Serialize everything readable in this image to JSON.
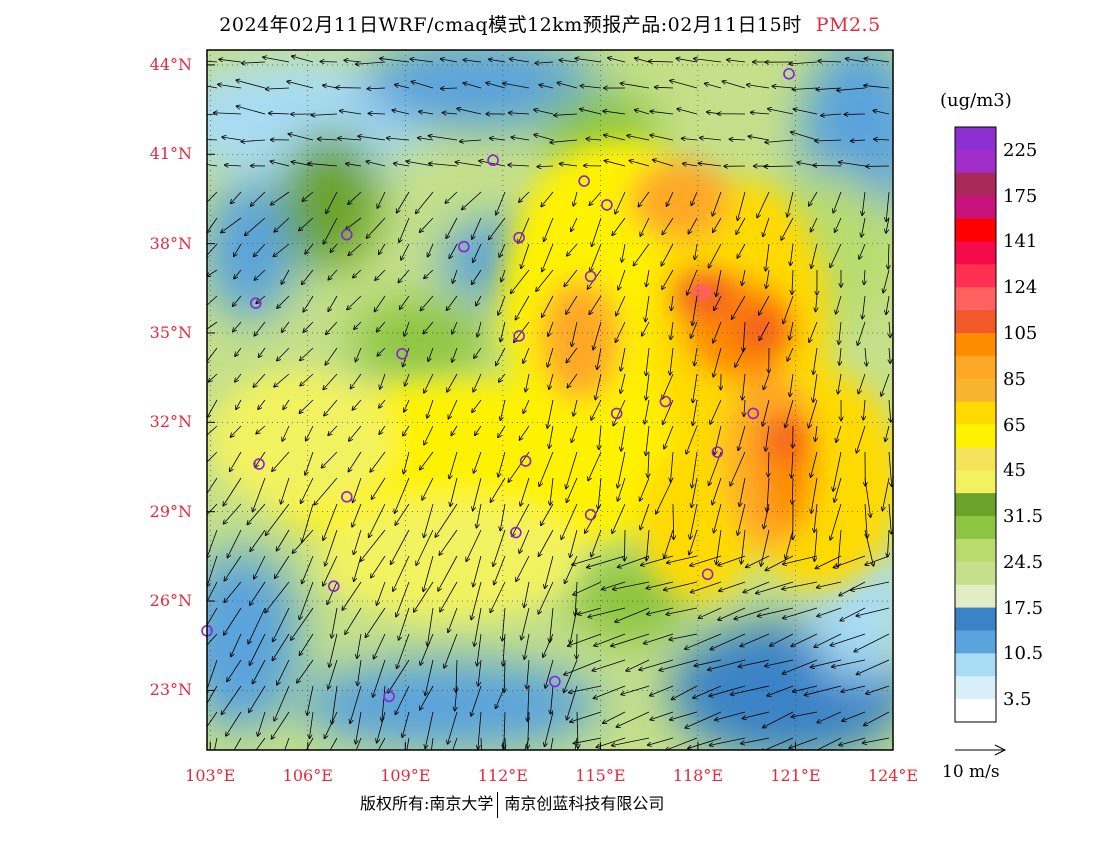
{
  "title": {
    "text": "2024年02月11日WRF/cmaq模式12km预报产品:02月11日15时",
    "pollutant": "PM2.5",
    "pollutant_color": "#e8283c"
  },
  "map": {
    "lat_labels": [
      "44°N",
      "41°N",
      "38°N",
      "35°N",
      "32°N",
      "29°N",
      "26°N",
      "23°N"
    ],
    "lon_labels": [
      "103°E",
      "106°E",
      "109°E",
      "112°E",
      "115°E",
      "118°E",
      "121°E",
      "124°E"
    ],
    "lat_range": [
      21,
      44.5
    ],
    "lon_range": [
      102.9,
      124
    ],
    "station_marker_color": "#8a22d6",
    "stations": [
      {
        "lon": 120.8,
        "lat": 43.7
      },
      {
        "lon": 111.7,
        "lat": 40.8
      },
      {
        "lon": 114.5,
        "lat": 40.1
      },
      {
        "lon": 115.2,
        "lat": 39.3
      },
      {
        "lon": 107.2,
        "lat": 38.3
      },
      {
        "lon": 110.8,
        "lat": 37.9
      },
      {
        "lon": 112.5,
        "lat": 38.2
      },
      {
        "lon": 114.7,
        "lat": 36.9
      },
      {
        "lon": 104.4,
        "lat": 36.0
      },
      {
        "lon": 112.5,
        "lat": 34.9
      },
      {
        "lon": 108.9,
        "lat": 34.3
      },
      {
        "lon": 117.0,
        "lat": 32.7
      },
      {
        "lon": 115.5,
        "lat": 32.3
      },
      {
        "lon": 119.7,
        "lat": 32.3
      },
      {
        "lon": 118.6,
        "lat": 31.0
      },
      {
        "lon": 104.5,
        "lat": 30.6
      },
      {
        "lon": 112.7,
        "lat": 30.7
      },
      {
        "lon": 107.2,
        "lat": 29.5
      },
      {
        "lon": 114.7,
        "lat": 28.9
      },
      {
        "lon": 112.4,
        "lat": 28.3
      },
      {
        "lon": 118.3,
        "lat": 26.9
      },
      {
        "lon": 106.8,
        "lat": 26.5
      },
      {
        "lon": 102.9,
        "lat": 25.0
      },
      {
        "lon": 108.5,
        "lat": 22.8
      },
      {
        "lon": 113.6,
        "lat": 23.3
      }
    ]
  },
  "colorbar": {
    "unit": "(ug/m3)",
    "labels": [
      "225",
      "175",
      "141",
      "124",
      "105",
      "85",
      "65",
      "45",
      "31.5",
      "24.5",
      "17.5",
      "10.5",
      "3.5"
    ],
    "colors": [
      "#8e2fd3",
      "#a12ec8",
      "#a82858",
      "#c7127c",
      "#ff0000",
      "#f50a4a",
      "#ff3052",
      "#ff6060",
      "#f2592a",
      "#ff8c00",
      "#ffa826",
      "#f7b42f",
      "#ffda00",
      "#fff200",
      "#f4e35b",
      "#f2f260",
      "#6ba32a",
      "#8cc541",
      "#b8dc6e",
      "#c5e08a",
      "#e2edc4",
      "#3a83c6",
      "#5aa3dc",
      "#a8dcf4",
      "#d8eff9",
      "#ffffff"
    ]
  },
  "wind_reference": {
    "label": "10 m/s"
  },
  "copyright": {
    "part1": "版权所有:南京大学",
    "part2": "南京创蓝科技有限公司"
  }
}
